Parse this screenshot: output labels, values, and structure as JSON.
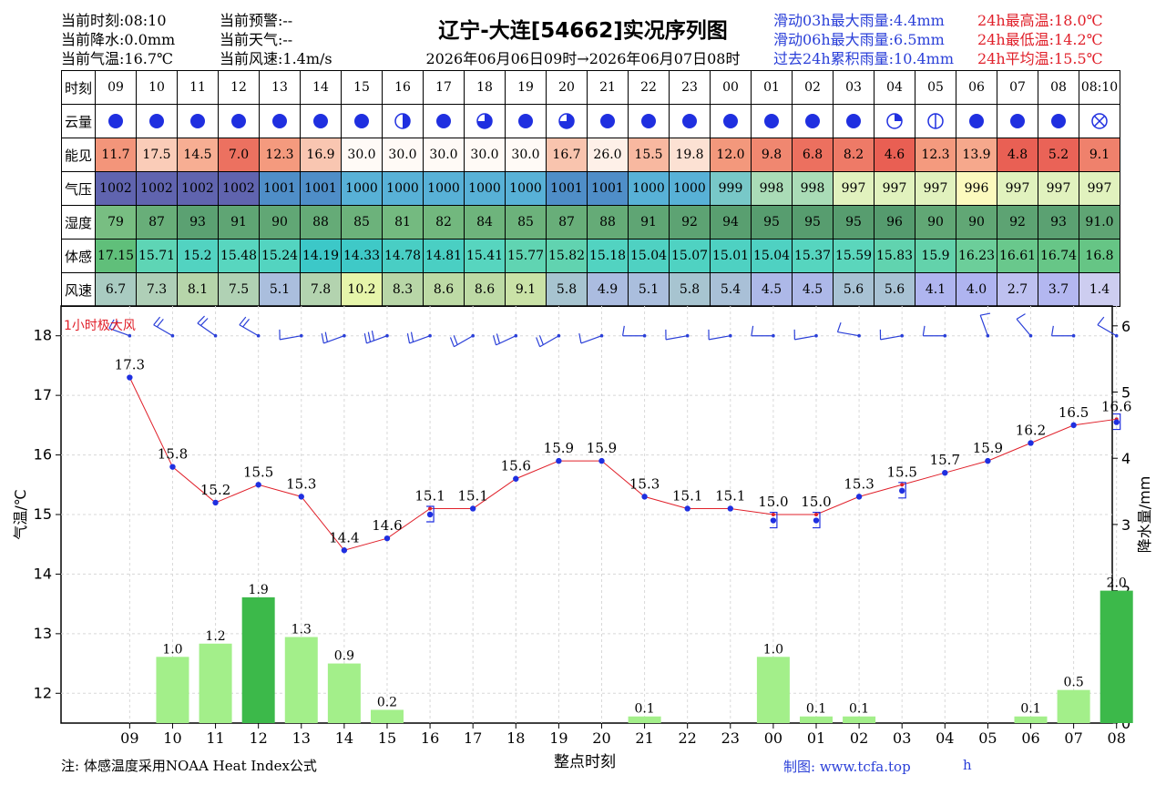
{
  "header": {
    "left": [
      "当前时刻:08:10",
      "当前降水:0.0mm",
      "当前气温:16.7℃"
    ],
    "mid": [
      "当前预警:--",
      "当前天气:--",
      "当前风速:1.4m/s"
    ],
    "title": "辽宁-大连[54662]实况序列图",
    "subtitle": "2026年06月06日09时→2026年06月07日08时",
    "rain": [
      "滑动03h最大雨量:4.4mm",
      "滑动06h最大雨量:6.5mm",
      "过去24h累积雨量:10.4mm"
    ],
    "temp": [
      "24h最高温:18.0℃",
      "24h最低温:14.2℃",
      "24h平均温:15.5℃"
    ]
  },
  "table": {
    "row_labels": [
      "时刻",
      "云量",
      "能见",
      "气压",
      "湿度",
      "体感",
      "风速"
    ],
    "hours": [
      "09",
      "10",
      "11",
      "12",
      "13",
      "14",
      "15",
      "16",
      "17",
      "18",
      "19",
      "20",
      "21",
      "22",
      "23",
      "00",
      "01",
      "02",
      "03",
      "04",
      "05",
      "06",
      "07",
      "08",
      "08:10"
    ],
    "cloud": [
      "full",
      "full",
      "full",
      "full",
      "full",
      "full",
      "full",
      "half",
      "full",
      "three-quarter",
      "full",
      "three-quarter",
      "full",
      "full",
      "full",
      "full",
      "full",
      "full",
      "full",
      "quarter",
      "empty-bar",
      "full",
      "full",
      "full",
      "obscured"
    ],
    "visibility": [
      "11.7",
      "17.5",
      "14.5",
      "7.0",
      "12.3",
      "16.9",
      "30.0",
      "30.0",
      "30.0",
      "30.0",
      "30.0",
      "16.7",
      "26.0",
      "15.5",
      "19.8",
      "12.0",
      "9.8",
      "6.8",
      "8.2",
      "4.6",
      "12.3",
      "13.9",
      "4.8",
      "5.2",
      "9.1"
    ],
    "pressure": [
      "1002",
      "1002",
      "1002",
      "1002",
      "1001",
      "1001",
      "1000",
      "1000",
      "1000",
      "1000",
      "1000",
      "1001",
      "1001",
      "1000",
      "1000",
      "999",
      "998",
      "998",
      "997",
      "997",
      "997",
      "996",
      "997",
      "997",
      "997"
    ],
    "humidity": [
      "79",
      "87",
      "93",
      "91",
      "90",
      "88",
      "85",
      "81",
      "82",
      "84",
      "85",
      "87",
      "88",
      "91",
      "92",
      "94",
      "95",
      "95",
      "95",
      "96",
      "90",
      "90",
      "92",
      "93",
      "91.0"
    ],
    "feels": [
      "17.15",
      "15.71",
      "15.2",
      "15.48",
      "15.24",
      "14.19",
      "14.33",
      "14.78",
      "14.81",
      "15.41",
      "15.77",
      "15.82",
      "15.18",
      "15.04",
      "15.07",
      "15.01",
      "15.04",
      "15.37",
      "15.59",
      "15.83",
      "15.9",
      "16.23",
      "16.61",
      "16.74",
      "16.8"
    ],
    "wind": [
      "6.7",
      "7.3",
      "8.1",
      "7.5",
      "5.1",
      "7.8",
      "10.2",
      "8.3",
      "8.6",
      "8.6",
      "9.1",
      "5.8",
      "4.9",
      "5.1",
      "5.8",
      "5.4",
      "4.5",
      "4.5",
      "5.6",
      "5.6",
      "4.1",
      "4.0",
      "2.7",
      "3.7",
      "1.4"
    ]
  },
  "colors": {
    "temp_line": "#e0202a",
    "temp_point": "#1f2fe0",
    "rain_light": "#a3ef8a",
    "rain_dark": "#3cb94a",
    "wind_barb": "#2a3fd8"
  },
  "chart_data": {
    "type": "line",
    "x": [
      "09",
      "10",
      "11",
      "12",
      "13",
      "14",
      "15",
      "16",
      "17",
      "18",
      "19",
      "20",
      "21",
      "22",
      "23",
      "00",
      "01",
      "02",
      "03",
      "04",
      "05",
      "06",
      "07",
      "08"
    ],
    "series": [
      {
        "values": [
          17.3,
          15.8,
          15.2,
          15.5,
          15.3,
          14.4,
          14.6,
          15.1,
          15.1,
          15.6,
          15.9,
          15.9,
          15.3,
          15.1,
          15.1,
          15.0,
          15.0,
          15.3,
          15.5,
          15.7,
          15.9,
          16.2,
          16.5,
          16.6
        ]
      },
      {
        "type": "bar",
        "values": [
          0,
          1.0,
          1.2,
          1.9,
          1.3,
          0.9,
          0.2,
          0,
          0,
          0,
          0,
          0,
          0.1,
          0,
          0,
          1.0,
          0.1,
          0.1,
          0,
          0,
          0,
          0.1,
          0.5,
          2.0
        ],
        "labels": [
          "",
          "1.0",
          "1.2",
          "1.9",
          "1.3",
          "0.9",
          "0.2",
          "",
          "",
          "",
          "",
          "",
          "0.1",
          "",
          "",
          "1.0",
          "0.1",
          "0.1",
          "",
          "",
          "",
          "0.1",
          "0.5",
          "2.0"
        ]
      }
    ],
    "dew_markers": [
      null,
      null,
      null,
      null,
      null,
      null,
      null,
      15.0,
      null,
      null,
      null,
      null,
      null,
      null,
      null,
      14.9,
      14.9,
      null,
      15.4,
      null,
      null,
      null,
      null,
      16.55
    ],
    "wind_dir": [
      290,
      300,
      305,
      300,
      260,
      250,
      250,
      250,
      240,
      245,
      240,
      250,
      270,
      260,
      260,
      270,
      260,
      280,
      260,
      270,
      340,
      320,
      270,
      300
    ],
    "xlabel": "整点时刻",
    "ylabel": "气温/℃",
    "y2label": "降水量/mm",
    "ylim": [
      11.5,
      18.5
    ],
    "y2lim": [
      0,
      6.3
    ],
    "yticks": [
      12,
      13,
      14,
      15,
      16,
      17,
      18
    ],
    "y2ticks": [
      0,
      1,
      2,
      3,
      4,
      5,
      6
    ],
    "annotation": "1小时极大风",
    "grid": true
  },
  "footer": {
    "note": "注: 体感温度采用NOAA Heat Index公式",
    "credit": "制图: www.tcfa.top",
    "extra": "h"
  }
}
